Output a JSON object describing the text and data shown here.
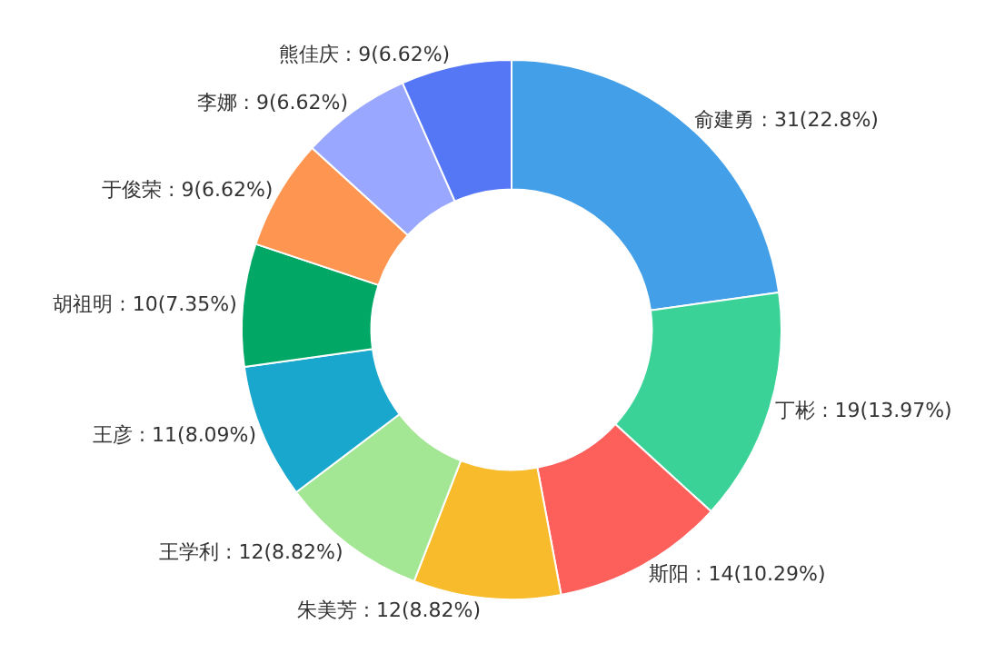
{
  "chart_data": {
    "type": "donut",
    "categories": [
      "俞建勇",
      "丁彬",
      "斯阳",
      "朱美芳",
      "王学利",
      "王彦",
      "胡祖明",
      "于俊荣",
      "李娜",
      "熊佳庆"
    ],
    "values": [
      31,
      19,
      14,
      12,
      12,
      11,
      10,
      9,
      9,
      9
    ],
    "value_labels": [
      "31(22.8%)",
      "19(13.97%)",
      "14(10.29%)",
      "12(8.82%)",
      "12(8.82%)",
      "11(8.09%)",
      "10(7.35%)",
      "9(6.62%)",
      "9(6.62%)",
      "9(6.62%)"
    ],
    "colors": [
      "#43a0e8",
      "#3bd297",
      "#fd5f5b",
      "#f8bb2c",
      "#a3e693",
      "#19a7ce",
      "#01a765",
      "#fe9550",
      "#99a8fe",
      "#5577f5"
    ],
    "legend": false
  }
}
